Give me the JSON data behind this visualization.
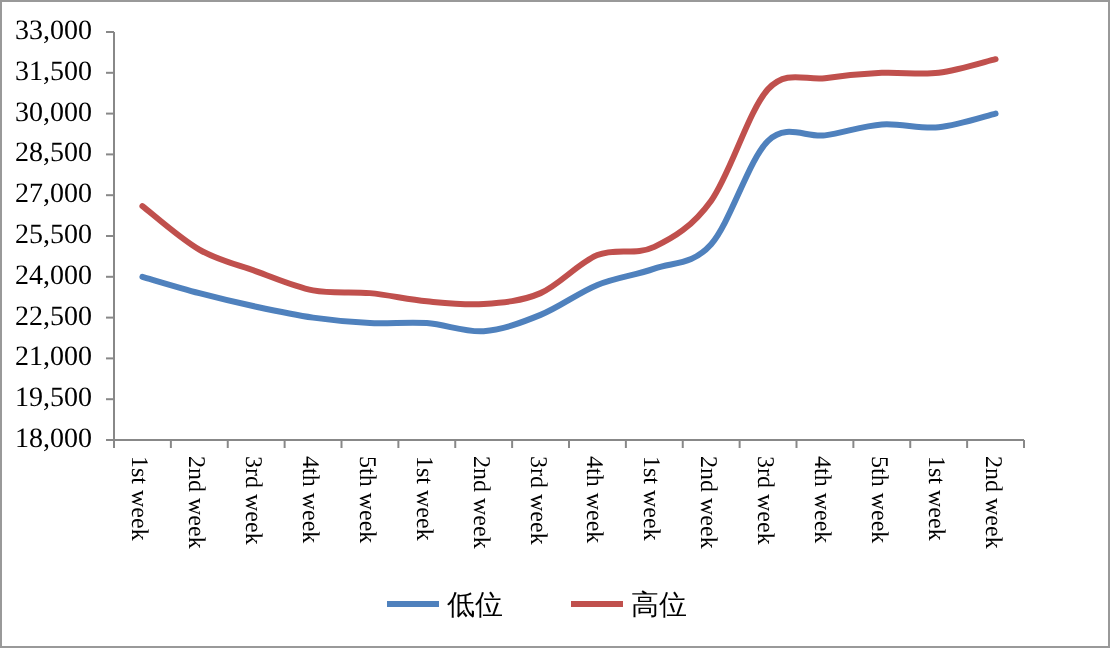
{
  "chart_data": {
    "type": "line",
    "categories": [
      "1st week",
      "2nd week",
      "3rd week",
      "4th week",
      "5th week",
      "1st week",
      "2nd week",
      "3rd week",
      "4th week",
      "1st week",
      "2nd week",
      "3rd week",
      "4th week",
      "5th week",
      "1st week",
      "2nd week"
    ],
    "series": [
      {
        "name": "低位",
        "color": "#4f81bd",
        "values": [
          24000,
          23400,
          22900,
          22500,
          22300,
          22300,
          22000,
          22600,
          23700,
          24300,
          25200,
          29000,
          29200,
          29600,
          29500,
          30000
        ]
      },
      {
        "name": "高位",
        "color": "#c0504d",
        "values": [
          26600,
          25000,
          24200,
          23500,
          23400,
          23100,
          23000,
          23400,
          24800,
          25100,
          26800,
          30900,
          31300,
          31500,
          31500,
          32000
        ]
      }
    ],
    "ylim": [
      18000,
      33000
    ],
    "yticks": [
      {
        "value": 18000,
        "label": "18,000"
      },
      {
        "value": 19500,
        "label": "19,500"
      },
      {
        "value": 21000,
        "label": "21,000"
      },
      {
        "value": 22500,
        "label": "22,500"
      },
      {
        "value": 24000,
        "label": "24,000"
      },
      {
        "value": 25500,
        "label": "25,500"
      },
      {
        "value": 27000,
        "label": "27,000"
      },
      {
        "value": 28500,
        "label": "28,500"
      },
      {
        "value": 30000,
        "label": "30,000"
      },
      {
        "value": 31500,
        "label": "31,500"
      },
      {
        "value": 33000,
        "label": "33,000"
      }
    ],
    "grid": false,
    "legend": "bottom",
    "marker": "none",
    "line_style": "solid"
  }
}
